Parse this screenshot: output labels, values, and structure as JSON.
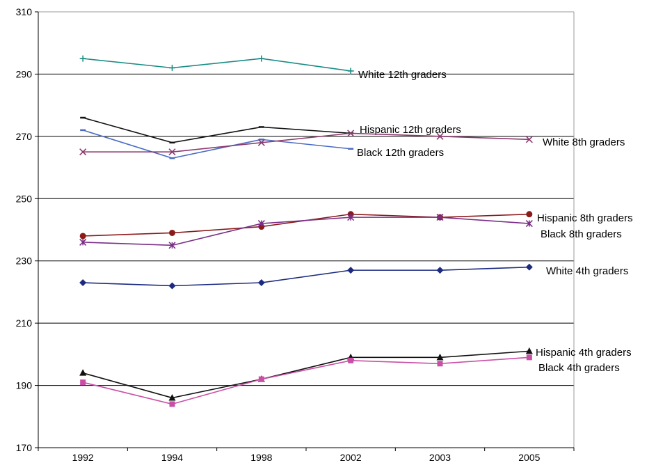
{
  "chart_data": {
    "type": "line",
    "title": "",
    "xlabel": "",
    "ylabel": "",
    "categories": [
      "1992",
      "1994",
      "1998",
      "2002",
      "2003",
      "2005"
    ],
    "ylim": [
      170,
      310
    ],
    "yticks": [
      170,
      190,
      210,
      230,
      250,
      270,
      290,
      310
    ],
    "grid": "horizontal",
    "legend": "none (series labels printed next to lines)",
    "series": [
      {
        "name": "White 12th graders",
        "color": "#1a8c84",
        "marker": "plus",
        "values": [
          295,
          292,
          295,
          291,
          null,
          null
        ]
      },
      {
        "name": "Hispanic 12th graders",
        "color": "#111111",
        "marker": "dash",
        "values": [
          276,
          268,
          273,
          271,
          null,
          null
        ]
      },
      {
        "name": "Black 12th graders",
        "color": "#4a6bc4",
        "marker": "dash",
        "values": [
          272,
          263,
          269,
          266,
          null,
          null
        ]
      },
      {
        "name": "White 8th graders",
        "color": "#8b3a6e",
        "marker": "x",
        "values": [
          265,
          265,
          268,
          271,
          270,
          269
        ]
      },
      {
        "name": "Hispanic 8th graders",
        "color": "#8b1a1a",
        "marker": "circle",
        "values": [
          238,
          239,
          241,
          245,
          244,
          245
        ]
      },
      {
        "name": "Black 8th graders",
        "color": "#7a2e86",
        "marker": "star",
        "values": [
          236,
          235,
          242,
          244,
          244,
          242
        ]
      },
      {
        "name": "White 4th graders",
        "color": "#1c2a80",
        "marker": "diamond",
        "values": [
          223,
          222,
          223,
          227,
          227,
          228
        ]
      },
      {
        "name": "Hispanic 4th graders",
        "color": "#111111",
        "marker": "triangle",
        "values": [
          194,
          186,
          192,
          199,
          199,
          201
        ]
      },
      {
        "name": "Black 4th graders",
        "color": "#c94fa6",
        "marker": "square",
        "values": [
          191,
          184,
          192,
          198,
          197,
          199
        ]
      }
    ]
  }
}
